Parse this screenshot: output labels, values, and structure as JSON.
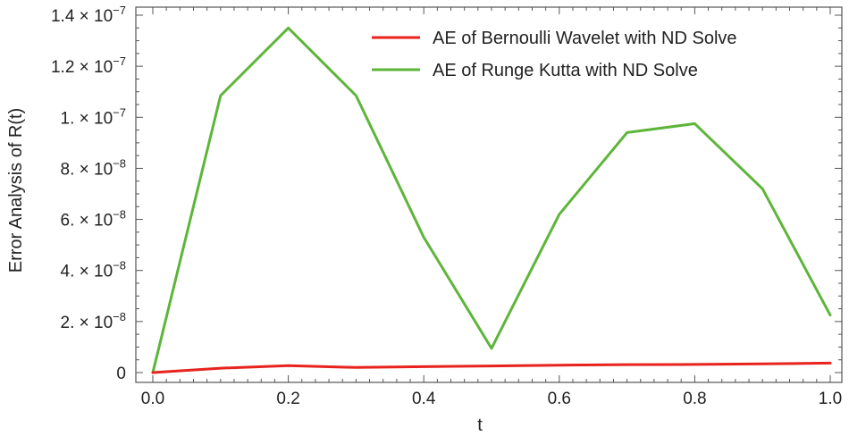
{
  "chart_data": {
    "type": "line",
    "title": "",
    "xlabel": "t",
    "ylabel": "Error Analysis of R(t)",
    "xlim": [
      0,
      1.0
    ],
    "ylim": [
      0,
      1.4e-07
    ],
    "x_ticks": [
      0.0,
      0.2,
      0.4,
      0.6,
      0.8,
      1.0
    ],
    "x_tick_labels": [
      "0.0",
      "0.2",
      "0.4",
      "0.6",
      "0.8",
      "1.0"
    ],
    "y_ticks": [
      0,
      2e-08,
      4e-08,
      6e-08,
      8e-08,
      1e-07,
      1.2e-07,
      1.4e-07
    ],
    "y_tick_labels": [
      {
        "mantissa": "0",
        "exponent": ""
      },
      {
        "mantissa": "2. × 10",
        "exponent": "−8"
      },
      {
        "mantissa": "4. × 10",
        "exponent": "−8"
      },
      {
        "mantissa": "6. × 10",
        "exponent": "−8"
      },
      {
        "mantissa": "8. × 10",
        "exponent": "−8"
      },
      {
        "mantissa": "1. × 10",
        "exponent": "−7"
      },
      {
        "mantissa": "1.2 × 10",
        "exponent": "−7"
      },
      {
        "mantissa": "1.4 × 10",
        "exponent": "−7"
      }
    ],
    "grid": false,
    "legend_position": "top-right",
    "x": [
      0.0,
      0.1,
      0.2,
      0.3,
      0.4,
      0.5,
      0.6,
      0.7,
      0.8,
      0.9,
      1.0
    ],
    "series": [
      {
        "name": "AE of Bernoulli Wavelet with ND Solve",
        "color": "#e8231e",
        "values": [
          0,
          1.7e-09,
          2.7e-09,
          2e-09,
          2.3e-09,
          2.6e-09,
          2.9e-09,
          3.1e-09,
          3.2e-09,
          3.4e-09,
          3.7e-09
        ]
      },
      {
        "name": "AE of Runge Kutta with ND Solve",
        "color": "#5db539",
        "values": [
          0,
          1.085e-07,
          1.35e-07,
          1.085e-07,
          5.3e-08,
          9.5e-09,
          6.2e-08,
          9.4e-08,
          9.75e-08,
          7.2e-08,
          2.25e-08
        ]
      }
    ]
  }
}
